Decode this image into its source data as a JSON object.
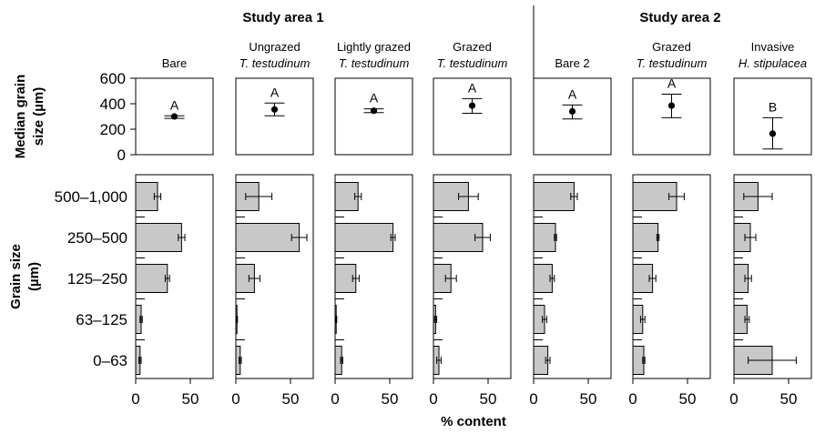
{
  "chart_data": {
    "type": "bar",
    "xlabel": "% content",
    "ylabel_top": "Median grain size (µm)",
    "ylabel_bottom": "Grain size (µm)",
    "study_areas": [
      "Study area 1",
      "Study area 2"
    ],
    "top_ylim": [
      0,
      600
    ],
    "top_yticks": [
      "0",
      "200",
      "400",
      "600"
    ],
    "bottom_xlim": [
      0,
      70
    ],
    "bottom_xticks": [
      "0",
      "50"
    ],
    "categories": [
      "500–1,000",
      "250–500",
      "125–250",
      "63–125",
      "0–63"
    ],
    "panels": [
      {
        "title1": "Bare",
        "title2": "",
        "area": 1,
        "letter": "A",
        "median": 300,
        "median_err_low": 285,
        "median_err_high": 305,
        "values": [
          20,
          42,
          29,
          5,
          4
        ],
        "errors": [
          3,
          3,
          2,
          1,
          1
        ]
      },
      {
        "title1": "Ungrazed",
        "title2": "T. testudinum",
        "area": 1,
        "letter": "A",
        "median": 355,
        "median_err_low": 305,
        "median_err_high": 405,
        "values": [
          21,
          58,
          17,
          1,
          4
        ],
        "errors": [
          12,
          7,
          5,
          0.5,
          1
        ]
      },
      {
        "title1": "Lightly grazed",
        "title2": "T. testudinum",
        "area": 1,
        "letter": "A",
        "median": 345,
        "median_err_low": 330,
        "median_err_high": 360,
        "values": [
          21,
          53,
          19,
          1,
          6
        ],
        "errors": [
          3,
          2,
          3,
          0.5,
          1
        ]
      },
      {
        "title1": "Grazed",
        "title2": "T. testudinum",
        "area": 1,
        "letter": "A",
        "median": 385,
        "median_err_low": 325,
        "median_err_high": 440,
        "values": [
          32,
          45,
          16,
          2,
          5
        ],
        "errors": [
          9,
          7,
          5,
          1,
          2
        ]
      },
      {
        "title1": "Bare 2",
        "title2": "",
        "area": 2,
        "letter": "A",
        "median": 340,
        "median_err_low": 280,
        "median_err_high": 390,
        "values": [
          37,
          20,
          17,
          10,
          13
        ],
        "errors": [
          3,
          1,
          2,
          2,
          2
        ]
      },
      {
        "title1": "Grazed",
        "title2": "T. testudinum",
        "area": 2,
        "letter": "A",
        "median": 385,
        "median_err_low": 290,
        "median_err_high": 475,
        "values": [
          40,
          23,
          18,
          9,
          10
        ],
        "errors": [
          7,
          1,
          3,
          2,
          1
        ]
      },
      {
        "title1": "Invasive",
        "title2": "H. stipulacea",
        "area": 2,
        "letter": "B",
        "median": 165,
        "median_err_low": 45,
        "median_err_high": 290,
        "values": [
          22,
          15,
          13,
          12,
          35
        ],
        "errors": [
          13,
          5,
          3,
          2,
          22
        ]
      }
    ]
  }
}
